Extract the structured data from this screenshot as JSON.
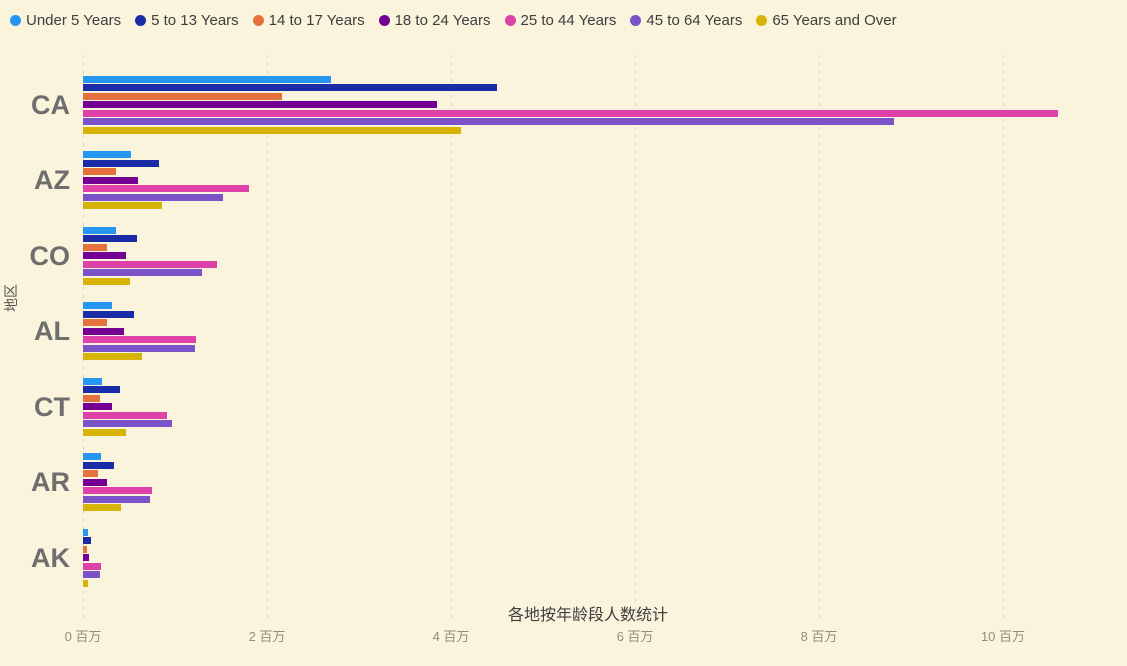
{
  "title": "各地按年龄段人数统计",
  "chart_data": {
    "type": "bar",
    "orientation": "horizontal-grouped",
    "title": "各地按年龄段人数统计",
    "ylabel": "地区",
    "unit": "百万 (millions of people)",
    "xlim": [
      0,
      11
    ],
    "grid": "dashed-vertical",
    "legend_position": "top-left",
    "categories": [
      "CA",
      "AZ",
      "CO",
      "AL",
      "CT",
      "AR",
      "AK"
    ],
    "series": [
      {
        "name": "Under 5 Years",
        "color": "#2597f3",
        "values": [
          2.7,
          0.52,
          0.36,
          0.31,
          0.21,
          0.2,
          0.05
        ]
      },
      {
        "name": "5 to 13 Years",
        "color": "#1a2ca8",
        "values": [
          4.5,
          0.83,
          0.59,
          0.55,
          0.4,
          0.34,
          0.09
        ]
      },
      {
        "name": "14 to 17 Years",
        "color": "#e5713c",
        "values": [
          2.16,
          0.36,
          0.26,
          0.26,
          0.18,
          0.16,
          0.04
        ]
      },
      {
        "name": "18 to 24 Years",
        "color": "#730092",
        "values": [
          3.85,
          0.6,
          0.47,
          0.45,
          0.32,
          0.26,
          0.07
        ]
      },
      {
        "name": "25 to 44 Years",
        "color": "#de41a7",
        "values": [
          10.6,
          1.8,
          1.46,
          1.23,
          0.91,
          0.75,
          0.2
        ]
      },
      {
        "name": "45 to 64 Years",
        "color": "#7b52c8",
        "values": [
          8.82,
          1.52,
          1.29,
          1.22,
          0.97,
          0.73,
          0.18
        ]
      },
      {
        "name": "65 Years and Over",
        "color": "#d7b306",
        "values": [
          4.11,
          0.86,
          0.51,
          0.64,
          0.47,
          0.41,
          0.05
        ]
      }
    ],
    "xticks": {
      "values_million": [
        0,
        2,
        4,
        6,
        8,
        10
      ],
      "labels": [
        "0 百万",
        "2 百万",
        "4 百万",
        "6 百万",
        "8 百万",
        "10 百万"
      ]
    }
  },
  "colors": {
    "background": "#faf4dc",
    "gridline": "#d6d0ba",
    "state_label": "#6e6e6e",
    "tick_label": "#938e7d",
    "title_text": "#3f3f3f",
    "legend_text": "#3d3d3d"
  }
}
